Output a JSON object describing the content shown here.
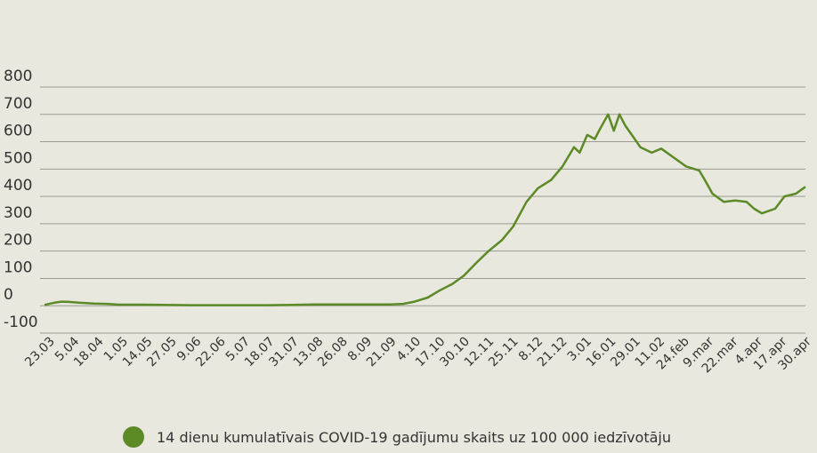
{
  "chart_data": {
    "type": "line",
    "title": "",
    "xlabel": "",
    "ylabel": "",
    "ylim": [
      -100,
      800
    ],
    "yticks": [
      800,
      700,
      600,
      500,
      400,
      300,
      200,
      100,
      0,
      -100
    ],
    "grid": true,
    "legend_position": "bottom",
    "line_color": "#5c8a26",
    "x_tick_labels": [
      "23.03",
      "5.04",
      "18.04",
      "1.05",
      "14.05",
      "27.05",
      "9.06",
      "22.06",
      "5.07",
      "18.07",
      "31.07",
      "13.08",
      "26.08",
      "8.09",
      "21.09",
      "4.10",
      "17.10",
      "30.10",
      "12.11",
      "25.11",
      "8.12",
      "21.12",
      "3.01",
      "16.01",
      "29.01",
      "11.02",
      "24.feb",
      "9.mar",
      "22.mar",
      "4.apr",
      "17.apr",
      "30.apr"
    ],
    "series": [
      {
        "name": "14 dienu kumulatīvais COVID-19 gadījumu skaits uz 100 000 iedzīvotāju",
        "points": [
          [
            0,
            3
          ],
          [
            3,
            8
          ],
          [
            6,
            12
          ],
          [
            9,
            15
          ],
          [
            13,
            14
          ],
          [
            18,
            11
          ],
          [
            26,
            8
          ],
          [
            33,
            7
          ],
          [
            39,
            4
          ],
          [
            52,
            4
          ],
          [
            78,
            2
          ],
          [
            104,
            2
          ],
          [
            117,
            2
          ],
          [
            130,
            3
          ],
          [
            143,
            5
          ],
          [
            156,
            5
          ],
          [
            182,
            5
          ],
          [
            189,
            7
          ],
          [
            195,
            15
          ],
          [
            202,
            30
          ],
          [
            208,
            55
          ],
          [
            215,
            80
          ],
          [
            221,
            110
          ],
          [
            228,
            160
          ],
          [
            234,
            200
          ],
          [
            241,
            240
          ],
          [
            247,
            290
          ],
          [
            254,
            380
          ],
          [
            260,
            430
          ],
          [
            267,
            460
          ],
          [
            273,
            510
          ],
          [
            279,
            580
          ],
          [
            282,
            560
          ],
          [
            286,
            625
          ],
          [
            290,
            610
          ],
          [
            293,
            650
          ],
          [
            297,
            700
          ],
          [
            300,
            640
          ],
          [
            303,
            700
          ],
          [
            306,
            660
          ],
          [
            310,
            620
          ],
          [
            314,
            580
          ],
          [
            320,
            560
          ],
          [
            325,
            575
          ],
          [
            332,
            540
          ],
          [
            338,
            510
          ],
          [
            345,
            495
          ],
          [
            348,
            460
          ],
          [
            352,
            410
          ],
          [
            358,
            380
          ],
          [
            364,
            385
          ],
          [
            370,
            380
          ],
          [
            374,
            355
          ],
          [
            378,
            338
          ],
          [
            385,
            355
          ],
          [
            390,
            400
          ],
          [
            396,
            410
          ],
          [
            401,
            435
          ]
        ]
      }
    ],
    "x_range": [
      0,
      401
    ]
  },
  "legend": {
    "label": "14 dienu kumulatīvais COVID-19 gadījumu skaits uz 100 000 iedzīvotāju",
    "color": "#5c8a26"
  }
}
